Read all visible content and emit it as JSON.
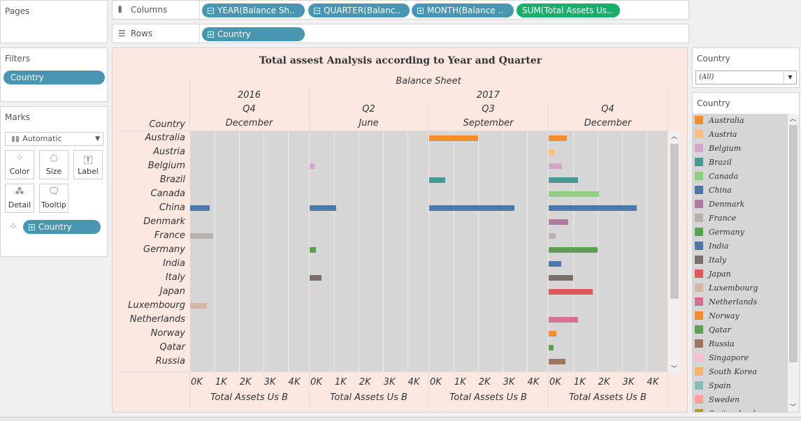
{
  "pages": {
    "title": "Pages"
  },
  "columns": {
    "label": "Columns",
    "pills": [
      {
        "text": "YEAR(Balance Sh..",
        "kind": "minus",
        "color": "blue"
      },
      {
        "text": "QUARTER(Balanc..",
        "kind": "minus",
        "color": "blue"
      },
      {
        "text": "MONTH(Balance ..",
        "kind": "plus",
        "color": "blue"
      },
      {
        "text": "SUM(Total Assets Us..",
        "kind": "none",
        "color": "green"
      }
    ]
  },
  "rows": {
    "label": "Rows",
    "pills": [
      {
        "text": "Country",
        "kind": "plus"
      }
    ]
  },
  "filters": {
    "title": "Filters",
    "pill": "Country"
  },
  "marks": {
    "title": "Marks",
    "type": "Automatic",
    "buttons": [
      {
        "label": "Color",
        "icon": "color-dots-icon"
      },
      {
        "label": "Size",
        "icon": "size-icon"
      },
      {
        "label": "Label",
        "icon": "label-icon"
      },
      {
        "label": "Detail",
        "icon": "detail-icon"
      },
      {
        "label": "Tooltip",
        "icon": "tooltip-icon"
      }
    ],
    "color_pill": "Country"
  },
  "country_filter": {
    "title": "Country",
    "value": "(All)"
  },
  "legend": {
    "title": "Country",
    "items": [
      {
        "name": "Australia",
        "color": "#f28e2b"
      },
      {
        "name": "Austria",
        "color": "#ffbe7d"
      },
      {
        "name": "Belgium",
        "color": "#d4a6c8"
      },
      {
        "name": "Brazil",
        "color": "#499894"
      },
      {
        "name": "Canada",
        "color": "#8cd17d"
      },
      {
        "name": "China",
        "color": "#4e79a7"
      },
      {
        "name": "Denmark",
        "color": "#b07aa1"
      },
      {
        "name": "France",
        "color": "#bab0ac"
      },
      {
        "name": "Germany",
        "color": "#59a14f"
      },
      {
        "name": "India",
        "color": "#4e79a7"
      },
      {
        "name": "Italy",
        "color": "#79706e"
      },
      {
        "name": "Japan",
        "color": "#e15759"
      },
      {
        "name": "Luxembourg",
        "color": "#d7b5a6"
      },
      {
        "name": "Netherlands",
        "color": "#d37295"
      },
      {
        "name": "Norway",
        "color": "#f28e2b"
      },
      {
        "name": "Qatar",
        "color": "#59a14f"
      },
      {
        "name": "Russia",
        "color": "#9d7660"
      },
      {
        "name": "Singapore",
        "color": "#fabfd2"
      },
      {
        "name": "South Korea",
        "color": "#f8b66b"
      },
      {
        "name": "Spain",
        "color": "#86bcb6"
      },
      {
        "name": "Sweden",
        "color": "#ff9d9a"
      },
      {
        "name": "Switzerland",
        "color": "#b6992d"
      }
    ]
  },
  "chart_data": {
    "type": "bar",
    "title": "Total assest Analysis according to Year and Quarter",
    "top_header": "Balance Sheet",
    "row_header": "Country",
    "columns": [
      {
        "year": "2016",
        "quarter": "Q4",
        "month": "December"
      },
      {
        "year": "2017",
        "quarter": "Q2",
        "month": "June"
      },
      {
        "year": "",
        "quarter": "Q3",
        "month": "September"
      },
      {
        "year": "",
        "quarter": "Q4",
        "month": "December"
      }
    ],
    "categories": [
      "Australia",
      "Austria",
      "Belgium",
      "Brazil",
      "Canada",
      "China",
      "Denmark",
      "France",
      "Germany",
      "India",
      "Italy",
      "Japan",
      "Luxembourg",
      "Netherlands",
      "Norway",
      "Qatar",
      "Russia"
    ],
    "series": [
      {
        "values": [
          0,
          0,
          0,
          0,
          0,
          800,
          0,
          950,
          0,
          0,
          0,
          0,
          700,
          0,
          0,
          0,
          0
        ]
      },
      {
        "values": [
          0,
          0,
          200,
          0,
          0,
          1100,
          0,
          0,
          250,
          0,
          500,
          0,
          0,
          0,
          0,
          0,
          0
        ]
      },
      {
        "values": [
          2000,
          0,
          0,
          650,
          0,
          3500,
          0,
          0,
          0,
          0,
          0,
          0,
          0,
          0,
          0,
          0,
          0
        ]
      },
      {
        "values": [
          750,
          250,
          550,
          1200,
          2050,
          3600,
          800,
          280,
          2000,
          520,
          1000,
          1800,
          0,
          1200,
          320,
          200,
          700
        ]
      }
    ],
    "xlim": [
      0,
      4500
    ],
    "ticks": [
      "0K",
      "1K",
      "2K",
      "3K",
      "4K"
    ],
    "xlabel": "Total Assets Us B"
  }
}
